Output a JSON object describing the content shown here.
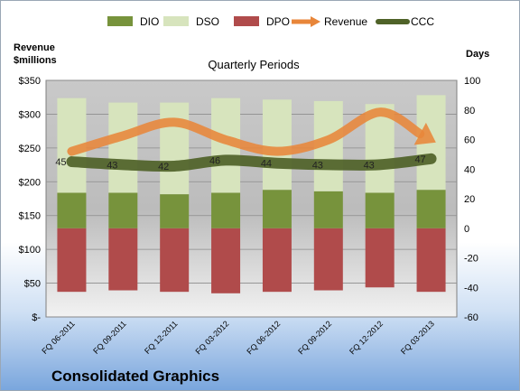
{
  "chart_data": {
    "type": "bar",
    "title": "Quarterly Periods",
    "company": "Consolidated Graphics",
    "categories": [
      "FQ 06-2011",
      "FQ 09-2011",
      "FQ 12-2011",
      "FQ 03-2012",
      "FQ 06-2012",
      "FQ 09-2012",
      "FQ 12-2012",
      "FQ 03-2013"
    ],
    "left_axis": {
      "label": "Revenue\n$millions",
      "ylim": [
        0,
        350
      ],
      "ticks": [
        "$-",
        "$50",
        "$100",
        "$150",
        "$200",
        "$250",
        "$300",
        "$350"
      ]
    },
    "right_axis": {
      "label": "Days",
      "ylim": [
        -60,
        100
      ],
      "ticks": [
        "-60",
        "-40",
        "-20",
        "0",
        "20",
        "40",
        "60",
        "80",
        "100"
      ]
    },
    "series": [
      {
        "name": "DIO",
        "type": "bar-stacked",
        "axis": "right",
        "color": "#77933c",
        "values": [
          24,
          24,
          23,
          24,
          26,
          25,
          24,
          26
        ]
      },
      {
        "name": "DSO",
        "type": "bar-stacked",
        "axis": "right",
        "color": "#d7e4bd",
        "values": [
          64,
          61,
          62,
          64,
          61,
          61,
          60,
          64
        ]
      },
      {
        "name": "DPO",
        "type": "bar-negative",
        "axis": "right",
        "color": "#b04b4b",
        "values": [
          -43,
          -42,
          -43,
          -44,
          -43,
          -42,
          -40,
          -43
        ]
      },
      {
        "name": "Revenue",
        "type": "line-arrow",
        "axis": "left",
        "color": "#e8863a",
        "values": [
          245,
          268,
          288,
          262,
          245,
          262,
          303,
          262
        ]
      },
      {
        "name": "CCC",
        "type": "line",
        "axis": "right",
        "color": "#4f6228",
        "values": [
          45,
          43,
          42,
          46,
          44,
          43,
          43,
          47
        ]
      }
    ],
    "ccc_labels": [
      "45",
      "43",
      "42",
      "46",
      "44",
      "43",
      "43",
      "47"
    ],
    "grid": true,
    "legend_position": "top"
  }
}
